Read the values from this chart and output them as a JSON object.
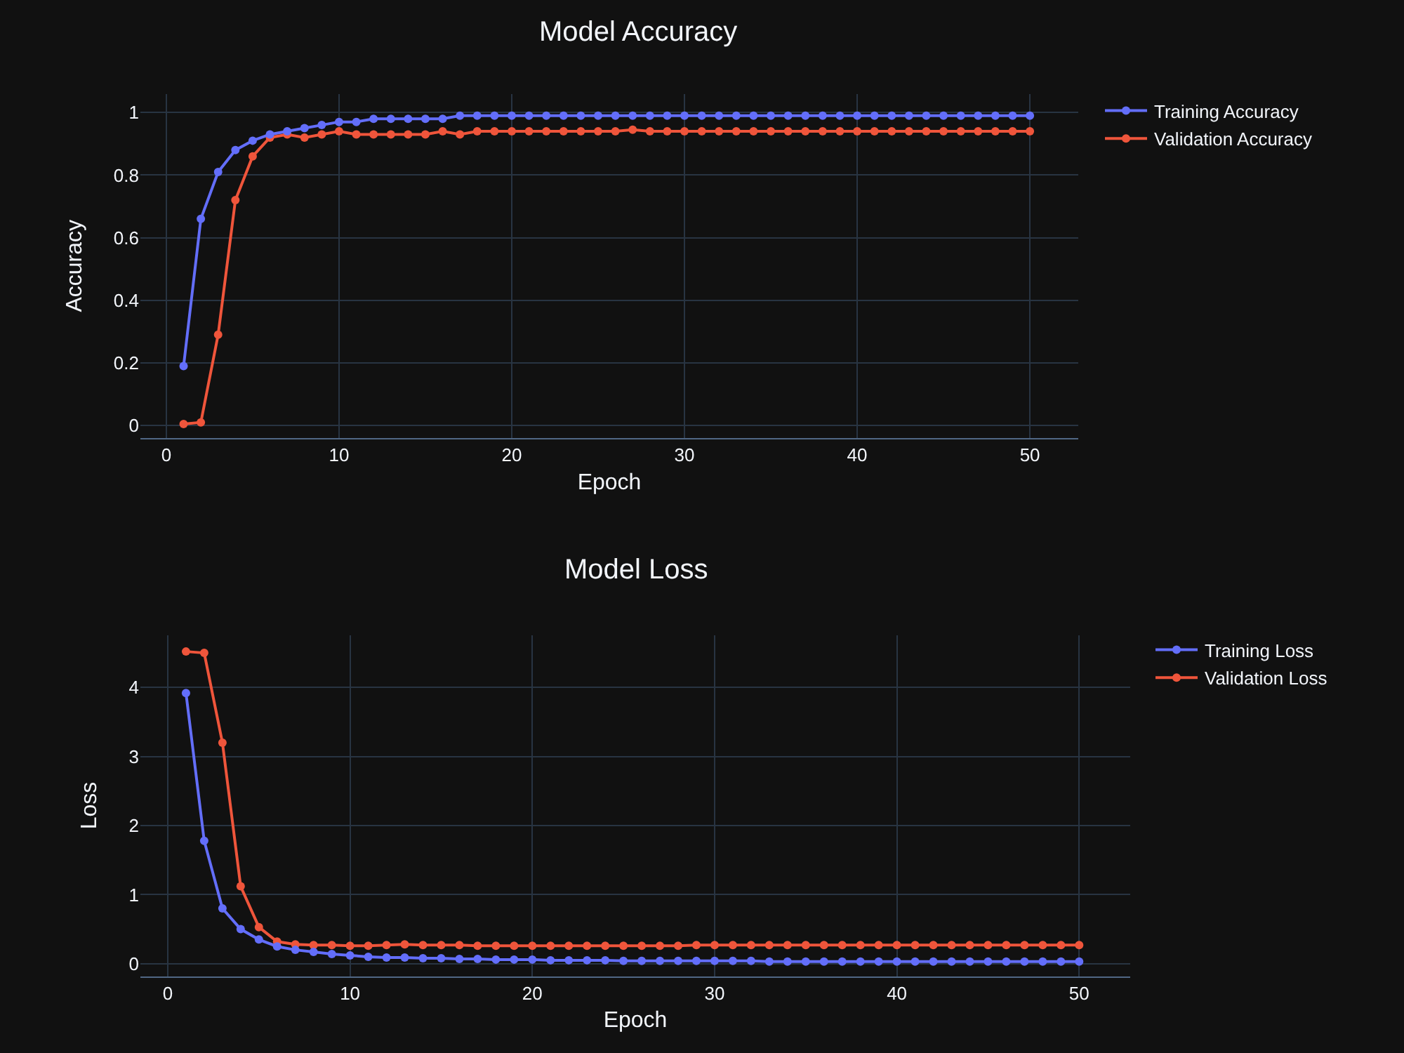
{
  "chart_data": [
    {
      "type": "line",
      "title": "Model Accuracy",
      "xlabel": "Epoch",
      "ylabel": "Accuracy",
      "x": [
        1,
        2,
        3,
        4,
        5,
        6,
        7,
        8,
        9,
        10,
        11,
        12,
        13,
        14,
        15,
        16,
        17,
        18,
        19,
        20,
        21,
        22,
        23,
        24,
        25,
        26,
        27,
        28,
        29,
        30,
        31,
        32,
        33,
        34,
        35,
        36,
        37,
        38,
        39,
        40,
        41,
        42,
        43,
        44,
        45,
        46,
        47,
        48,
        49,
        50
      ],
      "series": [
        {
          "name": "Training Accuracy",
          "color": "#636efa",
          "values": [
            0.19,
            0.66,
            0.81,
            0.88,
            0.91,
            0.93,
            0.94,
            0.95,
            0.96,
            0.97,
            0.97,
            0.98,
            0.98,
            0.98,
            0.98,
            0.98,
            0.99,
            0.99,
            0.99,
            0.99,
            0.99,
            0.99,
            0.99,
            0.99,
            0.99,
            0.99,
            0.99,
            0.99,
            0.99,
            0.99,
            0.99,
            0.99,
            0.99,
            0.99,
            0.99,
            0.99,
            0.99,
            0.99,
            0.99,
            0.99,
            0.99,
            0.99,
            0.99,
            0.99,
            0.99,
            0.99,
            0.99,
            0.99,
            0.99,
            0.99
          ]
        },
        {
          "name": "Validation Accuracy",
          "color": "#ef553b",
          "values": [
            0.005,
            0.01,
            0.29,
            0.72,
            0.86,
            0.92,
            0.93,
            0.92,
            0.93,
            0.94,
            0.93,
            0.93,
            0.93,
            0.93,
            0.93,
            0.94,
            0.93,
            0.94,
            0.94,
            0.94,
            0.94,
            0.94,
            0.94,
            0.94,
            0.94,
            0.94,
            0.945,
            0.94,
            0.94,
            0.94,
            0.94,
            0.94,
            0.94,
            0.94,
            0.94,
            0.94,
            0.94,
            0.94,
            0.94,
            0.94,
            0.94,
            0.94,
            0.94,
            0.94,
            0.94,
            0.94,
            0.94,
            0.94,
            0.94,
            0.94
          ]
        }
      ],
      "xlim": [
        -1.5,
        52.8
      ],
      "ylim": [
        -0.04,
        1.06
      ],
      "xticks": [
        0,
        10,
        20,
        30,
        40,
        50
      ],
      "yticks": [
        0,
        0.2,
        0.4,
        0.6,
        0.8,
        1
      ],
      "grid": true,
      "legend": "top right",
      "marker": "circle"
    },
    {
      "type": "line",
      "title": "Model Loss",
      "xlabel": "Epoch",
      "ylabel": "Loss",
      "x": [
        1,
        2,
        3,
        4,
        5,
        6,
        7,
        8,
        9,
        10,
        11,
        12,
        13,
        14,
        15,
        16,
        17,
        18,
        19,
        20,
        21,
        22,
        23,
        24,
        25,
        26,
        27,
        28,
        29,
        30,
        31,
        32,
        33,
        34,
        35,
        36,
        37,
        38,
        39,
        40,
        41,
        42,
        43,
        44,
        45,
        46,
        47,
        48,
        49,
        50
      ],
      "series": [
        {
          "name": "Training Loss",
          "color": "#636efa",
          "values": [
            3.92,
            1.78,
            0.8,
            0.5,
            0.35,
            0.25,
            0.2,
            0.17,
            0.14,
            0.12,
            0.1,
            0.09,
            0.09,
            0.08,
            0.08,
            0.07,
            0.07,
            0.06,
            0.06,
            0.06,
            0.05,
            0.05,
            0.05,
            0.05,
            0.04,
            0.04,
            0.04,
            0.04,
            0.04,
            0.04,
            0.04,
            0.04,
            0.03,
            0.03,
            0.03,
            0.03,
            0.03,
            0.03,
            0.03,
            0.03,
            0.03,
            0.03,
            0.03,
            0.03,
            0.03,
            0.03,
            0.03,
            0.03,
            0.03,
            0.03
          ]
        },
        {
          "name": "Validation Loss",
          "color": "#ef553b",
          "values": [
            4.52,
            4.5,
            3.2,
            1.12,
            0.53,
            0.32,
            0.28,
            0.27,
            0.27,
            0.26,
            0.26,
            0.27,
            0.28,
            0.27,
            0.27,
            0.27,
            0.26,
            0.26,
            0.26,
            0.26,
            0.26,
            0.26,
            0.26,
            0.26,
            0.26,
            0.26,
            0.26,
            0.26,
            0.27,
            0.27,
            0.27,
            0.27,
            0.27,
            0.27,
            0.27,
            0.27,
            0.27,
            0.27,
            0.27,
            0.27,
            0.27,
            0.27,
            0.27,
            0.27,
            0.27,
            0.27,
            0.27,
            0.27,
            0.27,
            0.27
          ]
        }
      ],
      "xlim": [
        -1.5,
        52.8
      ],
      "ylim": [
        -0.18,
        4.76
      ],
      "xticks": [
        0,
        10,
        20,
        30,
        40,
        50
      ],
      "yticks": [
        0,
        1,
        2,
        3,
        4
      ],
      "grid": true,
      "legend": "top right",
      "marker": "circle"
    }
  ]
}
